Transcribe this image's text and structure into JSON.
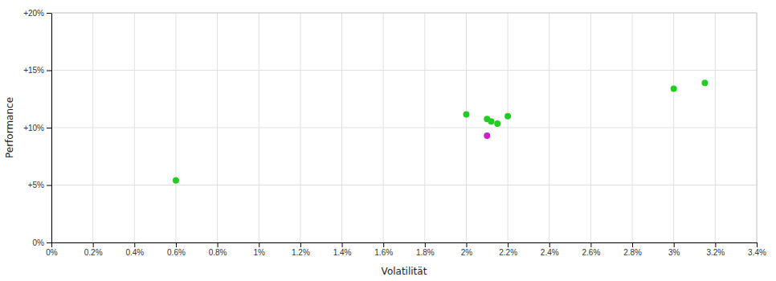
{
  "chart_data": {
    "type": "scatter",
    "xlabel": "Volatilität",
    "ylabel": "Performance",
    "xlim": [
      0,
      0.034
    ],
    "ylim": [
      0,
      0.2
    ],
    "xticks": [
      {
        "value": 0.0,
        "label": "0%"
      },
      {
        "value": 0.002,
        "label": "0.2%"
      },
      {
        "value": 0.004,
        "label": "0.4%"
      },
      {
        "value": 0.006,
        "label": "0.6%"
      },
      {
        "value": 0.008,
        "label": "0.8%"
      },
      {
        "value": 0.01,
        "label": "1%"
      },
      {
        "value": 0.012,
        "label": "1.2%"
      },
      {
        "value": 0.014,
        "label": "1.4%"
      },
      {
        "value": 0.016,
        "label": "1.6%"
      },
      {
        "value": 0.018,
        "label": "1.8%"
      },
      {
        "value": 0.02,
        "label": "2%"
      },
      {
        "value": 0.022,
        "label": "2.2%"
      },
      {
        "value": 0.024,
        "label": "2.4%"
      },
      {
        "value": 0.026,
        "label": "2.6%"
      },
      {
        "value": 0.028,
        "label": "2.8%"
      },
      {
        "value": 0.03,
        "label": "3%"
      },
      {
        "value": 0.032,
        "label": "3.2%"
      },
      {
        "value": 0.034,
        "label": "3.4%"
      }
    ],
    "yticks": [
      {
        "value": 0.0,
        "label": "0%"
      },
      {
        "value": 0.05,
        "label": "+5%"
      },
      {
        "value": 0.1,
        "label": "+10%"
      },
      {
        "value": 0.15,
        "label": "+15%"
      },
      {
        "value": 0.2,
        "label": "+20%"
      }
    ],
    "grid": true,
    "series": [
      {
        "color": "#22cc22",
        "x": [
          0.006,
          0.02,
          0.021,
          0.0212,
          0.0215,
          0.022,
          0.03,
          0.0315
        ],
        "values": [
          0.054,
          0.1115,
          0.1075,
          0.1055,
          0.1035,
          0.11,
          0.134,
          0.139
        ]
      },
      {
        "color": "#cc22cc",
        "x": [
          0.021
        ],
        "values": [
          0.093
        ]
      }
    ]
  }
}
